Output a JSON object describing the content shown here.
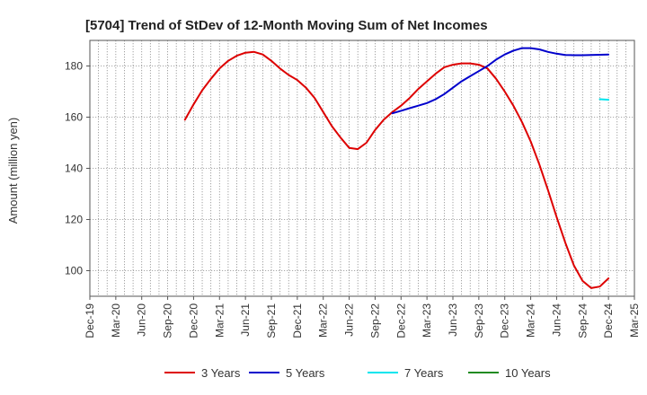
{
  "chart_data": {
    "type": "line",
    "title": "[5704]  Trend of StDev of 12-Month Moving Sum of Net Incomes",
    "xlabel": "",
    "ylabel": "Amount (million yen)",
    "ylim": [
      90,
      190
    ],
    "yticks": [
      100,
      120,
      140,
      160,
      180
    ],
    "x_tick_labels": [
      "Dec-19",
      "Mar-20",
      "Jun-20",
      "Sep-20",
      "Dec-20",
      "Mar-21",
      "Jun-21",
      "Sep-21",
      "Dec-21",
      "Mar-22",
      "Jun-22",
      "Sep-22",
      "Dec-22",
      "Mar-23",
      "Jun-23",
      "Sep-23",
      "Dec-23",
      "Mar-24",
      "Jun-24",
      "Sep-24",
      "Dec-24",
      "Mar-25"
    ],
    "grid": true,
    "legend_position": "bottom",
    "series": [
      {
        "name": "3 Years",
        "color": "#dd0000",
        "points": [
          [
            "2020-11",
            159
          ],
          [
            "2020-12",
            165
          ],
          [
            "2021-01",
            170.5
          ],
          [
            "2021-02",
            175
          ],
          [
            "2021-03",
            179
          ],
          [
            "2021-04",
            182
          ],
          [
            "2021-05",
            184
          ],
          [
            "2021-06",
            185.2
          ],
          [
            "2021-07",
            185.5
          ],
          [
            "2021-08",
            184.5
          ],
          [
            "2021-09",
            182
          ],
          [
            "2021-10",
            179
          ],
          [
            "2021-11",
            176.5
          ],
          [
            "2021-12",
            174.5
          ],
          [
            "2022-01",
            171.5
          ],
          [
            "2022-02",
            167.5
          ],
          [
            "2022-03",
            162
          ],
          [
            "2022-04",
            156.5
          ],
          [
            "2022-05",
            152
          ],
          [
            "2022-06",
            148
          ],
          [
            "2022-07",
            147.5
          ],
          [
            "2022-08",
            150
          ],
          [
            "2022-09",
            155
          ],
          [
            "2022-10",
            159
          ],
          [
            "2022-11",
            162
          ],
          [
            "2022-12",
            164.5
          ],
          [
            "2023-01",
            167.5
          ],
          [
            "2023-02",
            171
          ],
          [
            "2023-03",
            174
          ],
          [
            "2023-04",
            177
          ],
          [
            "2023-05",
            179.5
          ],
          [
            "2023-06",
            180.5
          ],
          [
            "2023-07",
            181
          ],
          [
            "2023-08",
            181
          ],
          [
            "2023-09",
            180.5
          ],
          [
            "2023-10",
            179
          ],
          [
            "2023-11",
            175
          ],
          [
            "2023-12",
            170
          ],
          [
            "2024-01",
            164.5
          ],
          [
            "2024-02",
            158
          ],
          [
            "2024-03",
            150.5
          ],
          [
            "2024-04",
            141.5
          ],
          [
            "2024-05",
            131.5
          ],
          [
            "2024-06",
            121
          ],
          [
            "2024-07",
            111
          ],
          [
            "2024-08",
            102
          ],
          [
            "2024-09",
            96
          ],
          [
            "2024-10",
            93.2
          ],
          [
            "2024-11",
            93.8
          ],
          [
            "2024-12",
            97
          ]
        ]
      },
      {
        "name": "5 Years",
        "color": "#0000cc",
        "points": [
          [
            "2022-11",
            161.5
          ],
          [
            "2022-12",
            162.5
          ],
          [
            "2023-01",
            163.5
          ],
          [
            "2023-02",
            164.5
          ],
          [
            "2023-03",
            165.5
          ],
          [
            "2023-04",
            167
          ],
          [
            "2023-05",
            169
          ],
          [
            "2023-06",
            171.5
          ],
          [
            "2023-07",
            174
          ],
          [
            "2023-08",
            176
          ],
          [
            "2023-09",
            178
          ],
          [
            "2023-10",
            180
          ],
          [
            "2023-11",
            182.5
          ],
          [
            "2023-12",
            184.5
          ],
          [
            "2024-01",
            186
          ],
          [
            "2024-02",
            187
          ],
          [
            "2024-03",
            187
          ],
          [
            "2024-04",
            186.5
          ],
          [
            "2024-05",
            185.5
          ],
          [
            "2024-06",
            184.8
          ],
          [
            "2024-07",
            184.3
          ],
          [
            "2024-08",
            184.2
          ],
          [
            "2024-09",
            184.2
          ],
          [
            "2024-10",
            184.3
          ],
          [
            "2024-11",
            184.4
          ],
          [
            "2024-12",
            184.5
          ]
        ]
      },
      {
        "name": "7 Years",
        "color": "#00e5ee",
        "points": [
          [
            "2024-11",
            167
          ],
          [
            "2024-12",
            166.8
          ]
        ]
      },
      {
        "name": "10 Years",
        "color": "#228b22",
        "points": []
      }
    ]
  }
}
